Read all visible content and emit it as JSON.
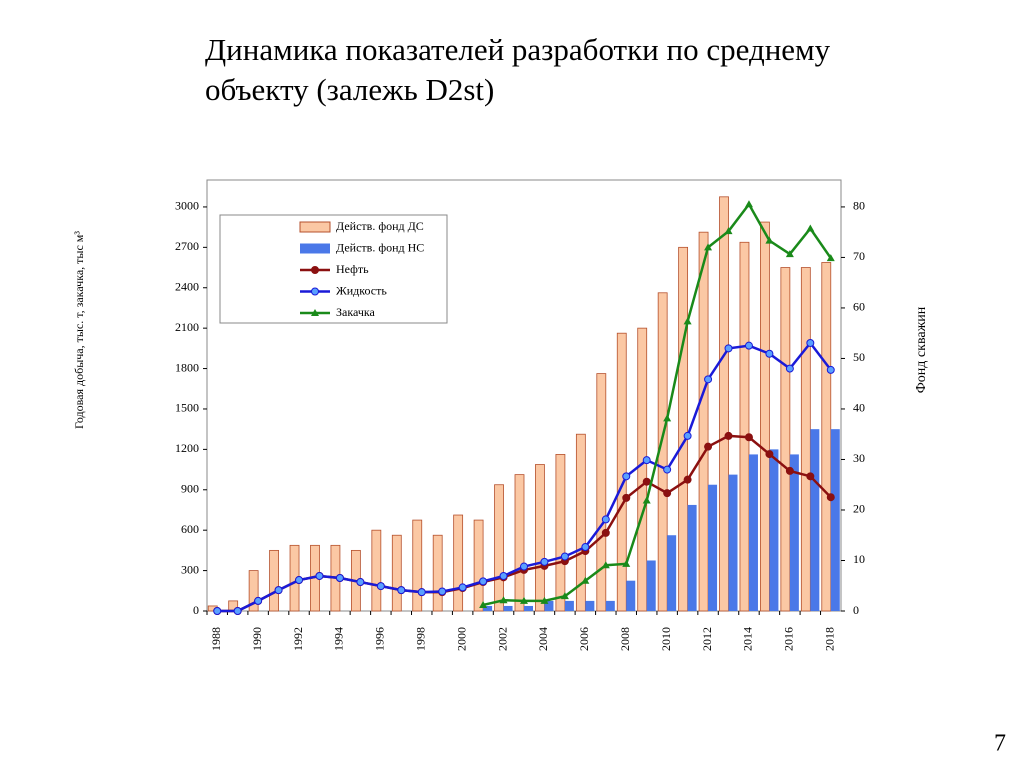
{
  "chart_data": {
    "type": "bar-line",
    "title": [
      "Динамика показателей разработки по среднему",
      "объекту (залежь D2st)"
    ],
    "y_label": "Годовая добыча, тыс. т, закачка, тыс м³",
    "y2_label": "Фонд скважин",
    "page_number": "7",
    "categories": [
      "1988",
      null,
      "1990",
      null,
      "1992",
      null,
      "1994",
      null,
      "1996",
      null,
      "1998",
      null,
      "2000",
      null,
      "2002",
      null,
      "2004",
      null,
      "2006",
      null,
      "2008",
      null,
      "2010",
      null,
      "2012",
      null,
      "2014",
      null,
      "2016",
      null,
      "2018"
    ],
    "ylim": [
      0,
      3200
    ],
    "yticks": [
      0,
      300,
      600,
      900,
      1200,
      1500,
      1800,
      2100,
      2400,
      2700,
      3000
    ],
    "y2lim": [
      0,
      85.33
    ],
    "y2ticks": [
      0,
      10,
      20,
      30,
      40,
      50,
      60,
      70,
      80
    ],
    "legend": "upper left",
    "series": [
      {
        "name": "Действ. фонд ДС",
        "kind": "bar",
        "axis": "y2",
        "color": "#fbc8a4",
        "stroke": "#b5502c",
        "values": [
          1,
          2,
          8,
          12,
          13,
          13,
          13,
          12,
          16,
          15,
          18,
          15,
          19,
          18,
          25,
          27,
          29,
          31,
          35,
          47,
          55,
          56,
          63,
          72,
          75,
          82,
          73,
          77,
          68,
          68,
          69
        ]
      },
      {
        "name": "Действ. фонд НС",
        "kind": "bar",
        "axis": "y2",
        "color": "#4a78e8",
        "values": [
          0,
          0,
          0,
          0,
          0,
          0,
          0,
          0,
          0,
          0,
          0,
          0,
          0,
          1,
          1,
          1,
          2,
          2,
          2,
          2,
          6,
          10,
          15,
          21,
          25,
          27,
          31,
          32,
          31,
          36,
          36
        ]
      },
      {
        "name": "Нефть",
        "kind": "line",
        "marker": "circle",
        "color": "#8b1010",
        "values": [
          0,
          0,
          75,
          155,
          230,
          260,
          245,
          215,
          185,
          155,
          140,
          140,
          170,
          215,
          250,
          305,
          335,
          370,
          445,
          580,
          840,
          960,
          875,
          975,
          1220,
          1300,
          1290,
          1165,
          1040,
          1000,
          845
        ]
      },
      {
        "name": "Жидкость",
        "kind": "line",
        "marker": "circle",
        "color": "#1a1ad8",
        "values": [
          0,
          0,
          75,
          155,
          230,
          260,
          245,
          215,
          185,
          155,
          140,
          145,
          175,
          220,
          260,
          330,
          365,
          405,
          475,
          680,
          1000,
          1120,
          1050,
          1300,
          1720,
          1950,
          1970,
          1910,
          1800,
          1990,
          1790
        ]
      },
      {
        "name": "Закачка",
        "kind": "line",
        "marker": "triangle",
        "color": "#1a8a1a",
        "values": [
          null,
          null,
          null,
          null,
          null,
          null,
          null,
          null,
          null,
          null,
          null,
          null,
          null,
          45,
          80,
          75,
          75,
          110,
          225,
          340,
          350,
          820,
          1430,
          2150,
          2700,
          2820,
          3020,
          2750,
          2650,
          2840,
          2620
        ]
      }
    ]
  }
}
